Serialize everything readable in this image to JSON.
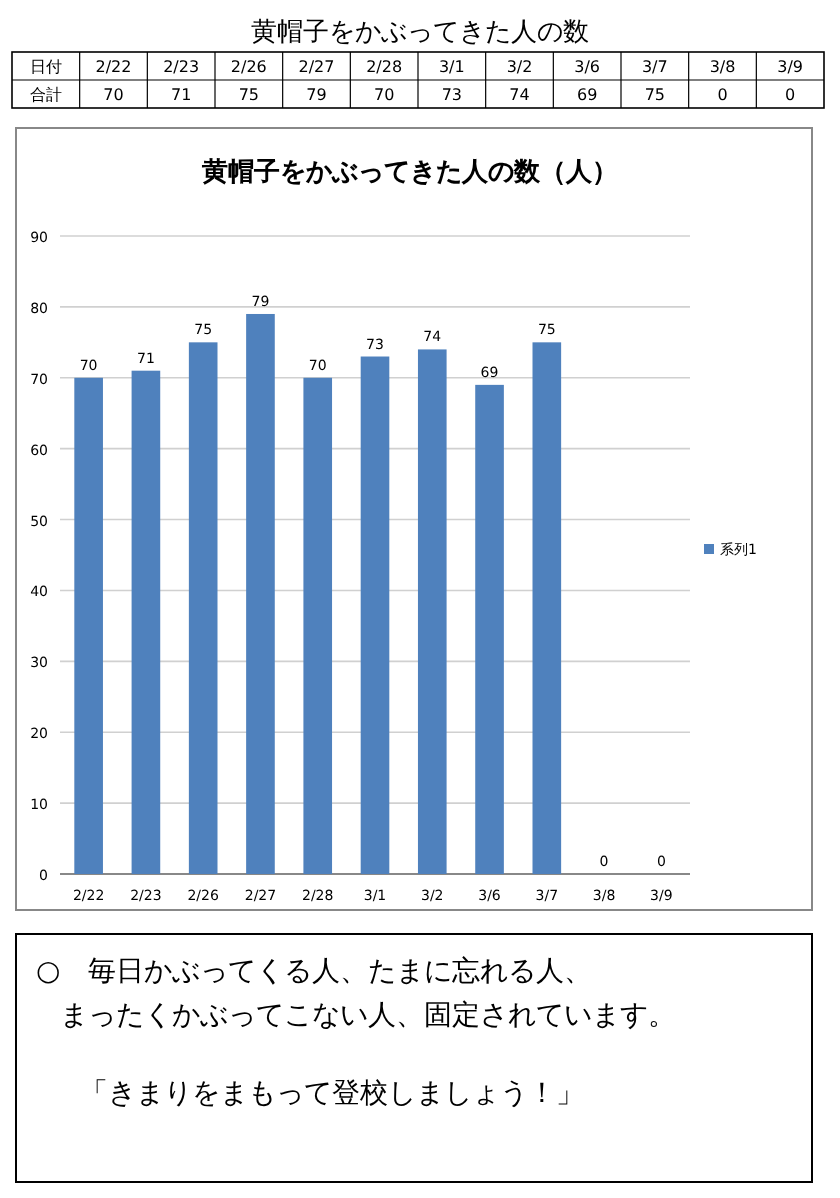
{
  "chart_data": [
    {
      "type": "other",
      "title": "黄帽子をかぶってきた人の数",
      "categories": [
        "2/22",
        "2/23",
        "2/26",
        "2/27",
        "2/28",
        "3/1",
        "3/2",
        "3/6",
        "3/7",
        "3/8",
        "3/9"
      ],
      "values": [
        70,
        71,
        75,
        79,
        70,
        73,
        74,
        69,
        75,
        0,
        0
      ],
      "data_labels": true,
      "annotations": [
        "日付",
        "合計"
      ]
    },
    {
      "type": "bar",
      "title": "黄帽子をかぶってきた人の数（人）",
      "categories": [
        "2/22",
        "2/23",
        "2/26",
        "2/27",
        "2/28",
        "3/1",
        "3/2",
        "3/6",
        "3/7",
        "3/8",
        "3/9"
      ],
      "series": [
        {
          "name": "系列1",
          "color": "#4f81bd",
          "values": [
            70,
            71,
            75,
            79,
            70,
            73,
            74,
            69,
            75,
            0,
            0
          ]
        }
      ],
      "ylim": [
        0,
        90
      ],
      "yticks": [
        0,
        10,
        20,
        30,
        40,
        50,
        60,
        70,
        80,
        90
      ],
      "grid": "y",
      "legend": "right",
      "data_labels": true,
      "annotations": [
        "○　毎日かぶってくる人、たまに忘れる人、",
        "まったくかぶってこない人、固定されています。",
        "「きまりをまもって登校しましょう！」"
      ]
    }
  ]
}
